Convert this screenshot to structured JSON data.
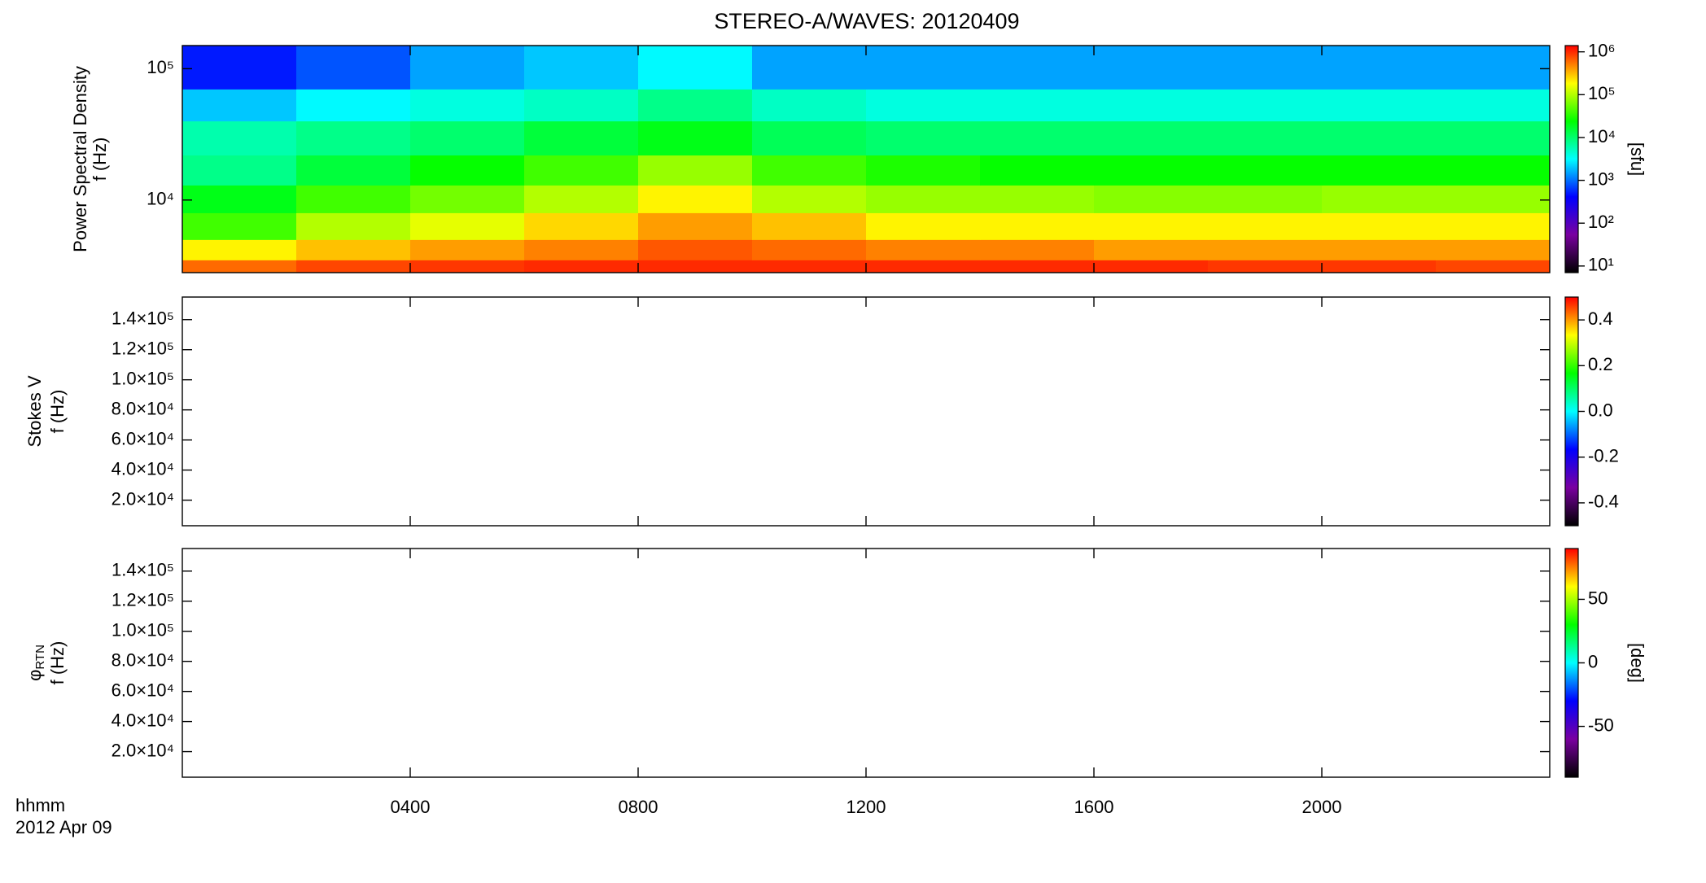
{
  "title": "STEREO-A/WAVES: 20120409",
  "time_label": "hhmm",
  "date_label": "2012 Apr 09",
  "colorscale": [
    "#000000",
    "#7a00a0",
    "#0000ff",
    "#00ffff",
    "#00ff00",
    "#ffff00",
    "#ff0000"
  ],
  "chart_data": [
    {
      "type": "heatmap",
      "ylabel": "Power Spectral Density",
      "ylabel2": "f (Hz)",
      "ylog": true,
      "ylim": [
        2800,
        150000
      ],
      "yticks": [
        {
          "value": 10000,
          "label": "10⁴"
        },
        {
          "value": 100000,
          "label": "10⁵"
        }
      ],
      "xbins": [
        0,
        2,
        4,
        6,
        8,
        10,
        12,
        14,
        16,
        18,
        20,
        22,
        24
      ],
      "ybins": [
        2800,
        3500,
        5000,
        8000,
        13000,
        22000,
        40000,
        70000,
        150000
      ],
      "z": [
        [
          600000,
          800000,
          900000,
          1000000,
          1000000,
          1000000,
          1000000,
          1000000,
          1000000,
          900000,
          900000,
          800000
        ],
        [
          200000,
          300000,
          400000,
          500000,
          700000,
          600000,
          500000,
          500000,
          400000,
          400000,
          400000,
          400000
        ],
        [
          40000,
          100000,
          150000,
          250000,
          400000,
          300000,
          200000,
          200000,
          200000,
          200000,
          200000,
          200000
        ],
        [
          20000,
          40000,
          60000,
          100000,
          200000,
          100000,
          80000,
          80000,
          70000,
          70000,
          80000,
          80000
        ],
        [
          8000,
          15000,
          25000,
          40000,
          80000,
          40000,
          30000,
          25000,
          25000,
          25000,
          25000,
          25000
        ],
        [
          6000,
          8000,
          10000,
          15000,
          20000,
          12000,
          10000,
          10000,
          10000,
          10000,
          10000,
          10000
        ],
        [
          2000,
          3000,
          4000,
          5000,
          8000,
          5000,
          4000,
          4000,
          4000,
          4000,
          4000,
          4000
        ],
        [
          500,
          800,
          1500,
          2000,
          3000,
          1500,
          1500,
          1500,
          1500,
          1500,
          1500,
          1500
        ]
      ],
      "clog": true,
      "clim": [
        7,
        1400000
      ],
      "cticks": [
        {
          "value": 10,
          "label": "10¹"
        },
        {
          "value": 100,
          "label": "10²"
        },
        {
          "value": 1000,
          "label": "10³"
        },
        {
          "value": 10000,
          "label": "10⁴"
        },
        {
          "value": 100000,
          "label": "10⁵"
        },
        {
          "value": 1000000,
          "label": "10⁶"
        }
      ],
      "clabel": "[sfu]"
    },
    {
      "type": "heatmap",
      "ylabel": "Stokes V",
      "ylabel2": "f (Hz)",
      "ylim": [
        3000,
        155000
      ],
      "yticks": [
        {
          "value": 20000,
          "label": "2.0×10⁴"
        },
        {
          "value": 40000,
          "label": "4.0×10⁴"
        },
        {
          "value": 60000,
          "label": "6.0×10⁴"
        },
        {
          "value": 80000,
          "label": "8.0×10⁴"
        },
        {
          "value": 100000,
          "label": "1.0×10⁵"
        },
        {
          "value": 120000,
          "label": "1.2×10⁵"
        },
        {
          "value": 140000,
          "label": "1.4×10⁵"
        }
      ],
      "clim": [
        -0.5,
        0.5
      ],
      "cticks": [
        {
          "value": -0.4,
          "label": "-0.4"
        },
        {
          "value": -0.2,
          "label": "-0.2"
        },
        {
          "value": 0,
          "label": "0.0"
        },
        {
          "value": 0.2,
          "label": "0.2"
        },
        {
          "value": 0.4,
          "label": "0.4"
        }
      ]
    },
    {
      "type": "heatmap",
      "ylabel": "φ",
      "ylabel_sub": "RTN",
      "ylabel2": "f (Hz)",
      "ylim": [
        3000,
        155000
      ],
      "yticks": [
        {
          "value": 20000,
          "label": "2.0×10⁴"
        },
        {
          "value": 40000,
          "label": "4.0×10⁴"
        },
        {
          "value": 60000,
          "label": "6.0×10⁴"
        },
        {
          "value": 80000,
          "label": "8.0×10⁴"
        },
        {
          "value": 100000,
          "label": "1.0×10⁵"
        },
        {
          "value": 120000,
          "label": "1.2×10⁵"
        },
        {
          "value": 140000,
          "label": "1.4×10⁵"
        }
      ],
      "xlim": [
        0,
        24
      ],
      "xticks": [
        {
          "value": 4,
          "label": "0400"
        },
        {
          "value": 8,
          "label": "0800"
        },
        {
          "value": 12,
          "label": "1200"
        },
        {
          "value": 16,
          "label": "1600"
        },
        {
          "value": 20,
          "label": "2000"
        }
      ],
      "clim": [
        -90,
        90
      ],
      "cticks": [
        -50,
        0,
        50
      ],
      "clabel": "[deg]"
    }
  ]
}
